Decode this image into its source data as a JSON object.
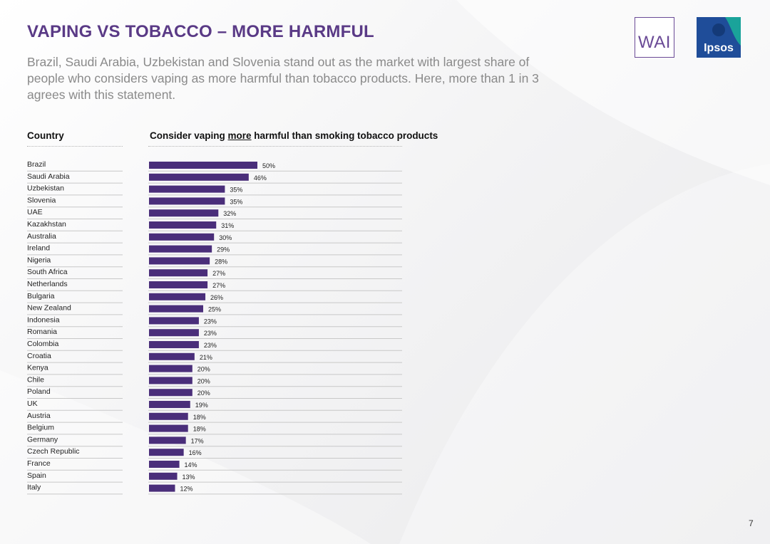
{
  "slide": {
    "title": "VAPING VS TOBACCO – MORE HARMFUL",
    "subtitle": "Brazil, Saudi Arabia, Uzbekistan and Slovenia stand out as the market with largest share of people who considers vaping as more harmful than tobacco products. Here, more than 1 in 3 agrees with this statement.",
    "page_number": "7",
    "logos": {
      "wai": "WAI",
      "ipsos": "Ipsos"
    }
  },
  "table_headers": {
    "country": "Country",
    "question_pre": "Consider vaping ",
    "question_emph": "more",
    "question_post": " harmful than smoking tobacco products"
  },
  "colors": {
    "bar": "#4a2e7a",
    "title": "#5a3a86",
    "accent": "#6a4a96",
    "ipsos_teal": "#1aa39a",
    "ipsos_blue": "#1f4d99"
  },
  "chart_data": {
    "type": "bar",
    "orientation": "horizontal",
    "categories": [
      "Brazil",
      "Saudi Arabia",
      "Uzbekistan",
      "Slovenia",
      "UAE",
      "Kazakhstan",
      "Australia",
      "Ireland",
      "Nigeria",
      "South Africa",
      "Netherlands",
      "Bulgaria",
      "New Zealand",
      "Indonesia",
      "Romania",
      "Colombia",
      "Croatia",
      "Kenya",
      "Chile",
      "Poland",
      "UK",
      "Austria",
      "Belgium",
      "Germany",
      "Czech Republic",
      "France",
      "Spain",
      "Italy"
    ],
    "values": [
      50,
      46,
      35,
      35,
      32,
      31,
      30,
      29,
      28,
      27,
      27,
      26,
      25,
      23,
      23,
      23,
      21,
      20,
      20,
      20,
      19,
      18,
      18,
      17,
      16,
      14,
      13,
      12
    ],
    "value_labels": [
      "50%",
      "46%",
      "35%",
      "35%",
      "32%",
      "31%",
      "30%",
      "29%",
      "28%",
      "27%",
      "27%",
      "26%",
      "25%",
      "23%",
      "23%",
      "23%",
      "21%",
      "20%",
      "20%",
      "20%",
      "19%",
      "18%",
      "18%",
      "17%",
      "16%",
      "14%",
      "13%",
      "12%"
    ],
    "unit": "%",
    "xlim": [
      0,
      50
    ],
    "grid": false,
    "legend": "none"
  }
}
